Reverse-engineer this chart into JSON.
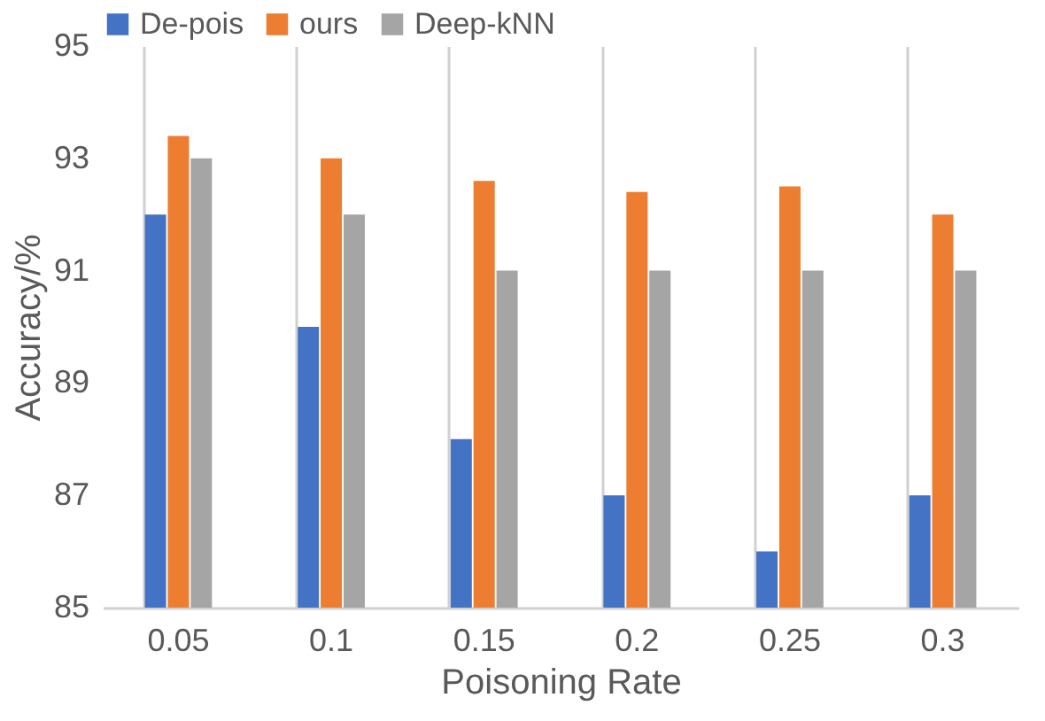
{
  "chart_data": {
    "type": "bar",
    "xlabel": "Poisoning Rate",
    "ylabel": "Accuracy/%",
    "categories": [
      "0.05",
      "0.1",
      "0.15",
      "0.2",
      "0.25",
      "0.3"
    ],
    "series": [
      {
        "name": "De-pois",
        "color": "#4472c4",
        "values": [
          92,
          90,
          88,
          87,
          86,
          87
        ]
      },
      {
        "name": "ours",
        "color": "#ed7d31",
        "values": [
          93.4,
          93.0,
          92.6,
          92.4,
          92.5,
          92.0
        ]
      },
      {
        "name": "Deep-kNN",
        "color": "#a5a5a5",
        "values": [
          93,
          92,
          91,
          91,
          91,
          91
        ]
      }
    ],
    "ylim": [
      85,
      95
    ],
    "yticks": [
      85,
      87,
      89,
      91,
      93,
      95
    ],
    "grid": "x",
    "legend": "top"
  }
}
